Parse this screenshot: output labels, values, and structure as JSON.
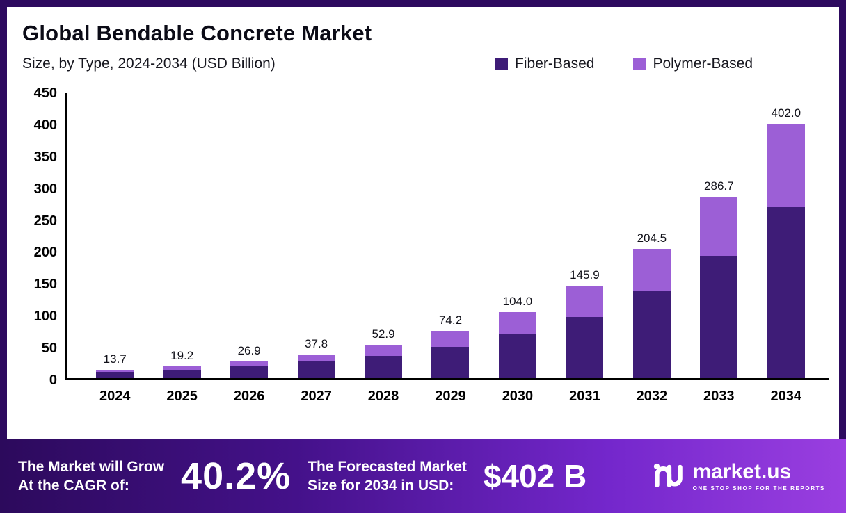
{
  "chart": {
    "title": "Global Bendable Concrete Market",
    "subtitle": "Size, by Type, 2024-2034 (USD Billion)"
  },
  "chart_data": {
    "type": "bar",
    "stacked": true,
    "title": "Global Bendable Concrete Market",
    "subtitle": "Size, by Type, 2024-2034 (USD Billion)",
    "xlabel": "",
    "ylabel": "USD Billion",
    "ylim": [
      0,
      450
    ],
    "ytick_step": 50,
    "yticks": [
      "0",
      "50",
      "100",
      "150",
      "200",
      "250",
      "300",
      "350",
      "400",
      "450"
    ],
    "grid": false,
    "legend_position": "top",
    "categories": [
      "2024",
      "2025",
      "2026",
      "2027",
      "2028",
      "2029",
      "2030",
      "2031",
      "2032",
      "2033",
      "2034"
    ],
    "series": [
      {
        "name": "Fiber-Based",
        "color": "#3e1c77",
        "values": [
          9.6,
          13.4,
          18.3,
          26.0,
          35.4,
          48.9,
          69.0,
          97.0,
          137.0,
          193.0,
          270.0
        ]
      },
      {
        "name": "Polymer-Based",
        "color": "#9c5fd6",
        "values": [
          4.1,
          5.8,
          8.6,
          11.8,
          17.5,
          25.3,
          35.0,
          48.9,
          67.5,
          93.7,
          132.0
        ]
      }
    ],
    "totals": [
      13.7,
      19.2,
      26.9,
      37.8,
      52.9,
      74.2,
      104.0,
      145.9,
      204.5,
      286.7,
      402.0
    ],
    "total_labels": [
      "13.7",
      "19.2",
      "26.9",
      "37.8",
      "52.9",
      "74.2",
      "104.0",
      "145.9",
      "204.5",
      "286.7",
      "402.0"
    ]
  },
  "banner": {
    "cagr_label_line1": "The Market will Grow",
    "cagr_label_line2": "At the CAGR of:",
    "cagr_value": "40.2%",
    "forecast_label_line1": "The Forecasted Market",
    "forecast_label_line2": "Size for 2034 in USD:",
    "forecast_value": "$402 B",
    "brand": "market.us",
    "brand_tagline": "ONE STOP SHOP FOR THE REPORTS"
  },
  "colors": {
    "frame": "#2d0a5f",
    "fiber": "#3e1c77",
    "polymer": "#9c5fd6",
    "banner_gradient_start": "#2c0a5c",
    "banner_gradient_end": "#9a3fe0",
    "axis": "#000000"
  }
}
